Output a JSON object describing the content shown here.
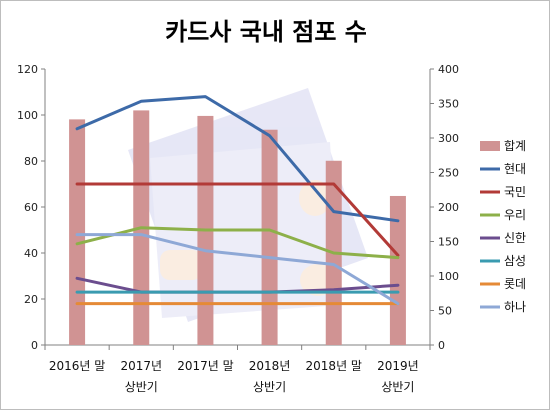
{
  "chart_data": {
    "type": "bar+line",
    "title": "카드사 국내 점포 수",
    "categories": [
      [
        "2016년 말",
        ""
      ],
      [
        "2017년",
        "상반기"
      ],
      [
        "2017년 말",
        ""
      ],
      [
        "2018년",
        "상반기"
      ],
      [
        "2018년 말",
        ""
      ],
      [
        "2019년",
        "상반기"
      ]
    ],
    "y_left": {
      "min": 0,
      "max": 120,
      "step": 20,
      "ticks": [
        "0",
        "20",
        "40",
        "60",
        "80",
        "100",
        "120"
      ]
    },
    "y_right": {
      "min": 0,
      "max": 400,
      "step": 50,
      "ticks": [
        "0",
        "50",
        "100",
        "150",
        "200",
        "250",
        "300",
        "350",
        "400"
      ]
    },
    "grid": false,
    "legend_position": "right",
    "series": [
      {
        "name": "합계",
        "type": "bar",
        "axis": "right",
        "color": "#d09393",
        "values": [
          327,
          340,
          332,
          312,
          267,
          216
        ]
      },
      {
        "name": "현대",
        "type": "line",
        "axis": "left",
        "color": "#3d6aa8",
        "values": [
          94,
          106,
          108,
          91,
          58,
          54
        ]
      },
      {
        "name": "국민",
        "type": "line",
        "axis": "left",
        "color": "#b23a37",
        "values": [
          70,
          70,
          70,
          70,
          70,
          39
        ]
      },
      {
        "name": "우리",
        "type": "line",
        "axis": "left",
        "color": "#8db049",
        "values": [
          44,
          51,
          50,
          50,
          40,
          38
        ]
      },
      {
        "name": "신한",
        "type": "line",
        "axis": "left",
        "color": "#6b4d8e",
        "values": [
          29,
          23,
          23,
          23,
          24,
          26
        ]
      },
      {
        "name": "삼성",
        "type": "line",
        "axis": "left",
        "color": "#3a9bb0",
        "values": [
          23,
          23,
          23,
          23,
          23,
          23
        ]
      },
      {
        "name": "롯데",
        "type": "line",
        "axis": "left",
        "color": "#e58a36",
        "values": [
          18,
          18,
          18,
          18,
          18,
          18
        ]
      },
      {
        "name": "하나",
        "type": "line",
        "axis": "left",
        "color": "#8ea8d6",
        "values": [
          48,
          48,
          41,
          38,
          35,
          18
        ]
      }
    ]
  }
}
